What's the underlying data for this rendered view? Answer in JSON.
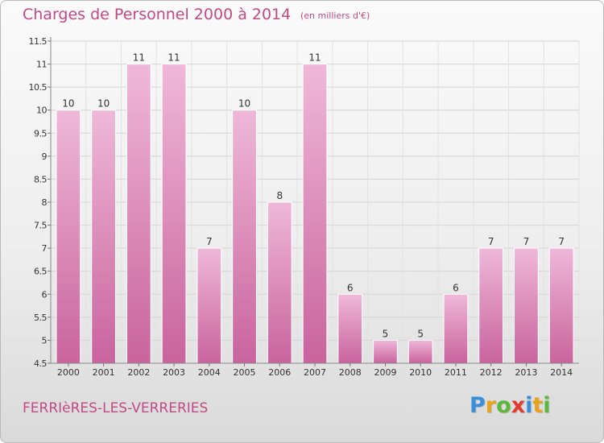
{
  "header": {
    "title": "Charges de Personnel 2000 à 2014",
    "unit": "(en milliers d'€)"
  },
  "footer": {
    "commune": "FERRIèRES-LES-VERRERIES",
    "logo": {
      "letters": [
        "P",
        "r",
        "o",
        "x",
        "i",
        "t",
        "i"
      ],
      "colors": [
        "#3a8fd8",
        "#e8a21b",
        "#5cb83a",
        "#e03b2f",
        "#3a8fd8",
        "#e8a21b",
        "#5cb83a"
      ]
    }
  },
  "chart_data": {
    "type": "bar",
    "title": "Charges de Personnel 2000 à 2014",
    "subtitle": "(en milliers d'€)",
    "categories": [
      "2000",
      "2001",
      "2002",
      "2003",
      "2004",
      "2005",
      "2006",
      "2007",
      "2008",
      "2009",
      "2010",
      "2011",
      "2012",
      "2013",
      "2014"
    ],
    "values": [
      10,
      10,
      11,
      11,
      7,
      10,
      8,
      11,
      6,
      5,
      5,
      6,
      7,
      7,
      7
    ],
    "data_labels": [
      "10",
      "10",
      "11",
      "11",
      "7",
      "10",
      "8",
      "11",
      "6",
      "5",
      "5",
      "6",
      "7",
      "7",
      "7"
    ],
    "ylim": [
      4.5,
      11.5
    ],
    "yticks": [
      "4.5",
      "5",
      "5.5",
      "6",
      "6.5",
      "7",
      "7.5",
      "8",
      "8.5",
      "9",
      "9.5",
      "10",
      "10.5",
      "11",
      "11.5"
    ],
    "grid": true,
    "colors": {
      "bar_light": "#efb8d8",
      "bar_dark": "#c9639e",
      "text": "#c04a86",
      "axis_text": "#333333"
    }
  }
}
